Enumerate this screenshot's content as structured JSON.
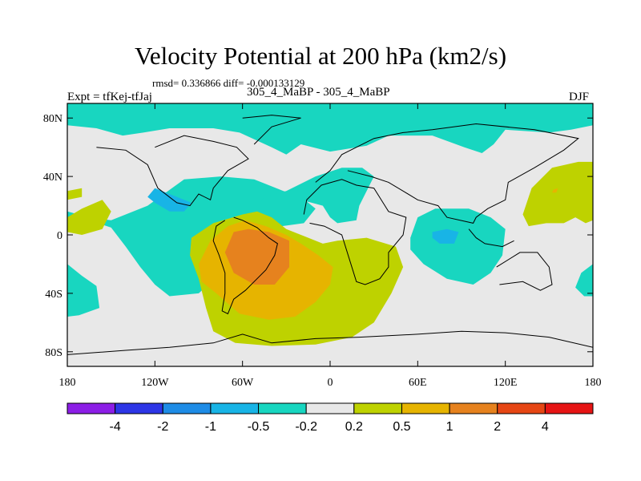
{
  "chart_data": {
    "type": "contour-map",
    "title": "Velocity Potential at 200 hPa (km2/s)",
    "stats": "rmsd= 0.336866 diff= -0.000133129",
    "left_string": "Expt = tfKej-tfJaj",
    "center_string": "305_4_MaBP - 305_4_MaBP",
    "right_string": "DJF",
    "xlim": [
      -180,
      180
    ],
    "ylim": [
      -90,
      90
    ],
    "x_ticks": [
      {
        "value": -180,
        "label": "180"
      },
      {
        "value": -120,
        "label": "120W"
      },
      {
        "value": -60,
        "label": "60W"
      },
      {
        "value": 0,
        "label": "0"
      },
      {
        "value": 60,
        "label": "60E"
      },
      {
        "value": 120,
        "label": "120E"
      },
      {
        "value": 180,
        "label": "180"
      }
    ],
    "y_ticks": [
      {
        "value": 80,
        "label": "80N"
      },
      {
        "value": 40,
        "label": "40N"
      },
      {
        "value": 0,
        "label": "0"
      },
      {
        "value": -40,
        "label": "40S"
      },
      {
        "value": -80,
        "label": "80S"
      }
    ],
    "colorbar": {
      "levels": [
        "-4",
        "-2",
        "-1",
        "-0.5",
        "-0.2",
        "0.2",
        "0.5",
        "1",
        "2",
        "4"
      ],
      "colors": [
        "#8c1ee6",
        "#2d36e6",
        "#1e8ce6",
        "#18b4e6",
        "#18d6c0",
        "#e8e8e8",
        "#bed200",
        "#e6b400",
        "#e6821e",
        "#e64614",
        "#e61414"
      ]
    },
    "regions": [
      {
        "level": 4,
        "points": [
          [
            -180,
            90
          ],
          [
            180,
            90
          ],
          [
            180,
            75
          ],
          [
            165,
            72
          ],
          [
            150,
            70
          ],
          [
            120,
            72
          ],
          [
            112,
            62
          ],
          [
            104,
            56
          ],
          [
            92,
            60
          ],
          [
            70,
            68
          ],
          [
            40,
            68
          ],
          [
            25,
            61
          ],
          [
            0,
            57
          ],
          [
            -20,
            62
          ],
          [
            -30,
            55
          ],
          [
            -40,
            60
          ],
          [
            -62,
            70
          ],
          [
            -80,
            73
          ],
          [
            -110,
            73
          ],
          [
            -128,
            70
          ],
          [
            -142,
            68
          ],
          [
            -160,
            73
          ],
          [
            -180,
            75
          ]
        ]
      },
      {
        "level": 4,
        "points": [
          [
            -180,
            10
          ],
          [
            -165,
            10
          ],
          [
            -150,
            5
          ],
          [
            -140,
            -8
          ],
          [
            -130,
            -22
          ],
          [
            -120,
            -34
          ],
          [
            -110,
            -42
          ],
          [
            -90,
            -40
          ],
          [
            -70,
            -22
          ],
          [
            -55,
            -4
          ],
          [
            -40,
            5
          ],
          [
            -18,
            8
          ],
          [
            -10,
            18
          ],
          [
            -20,
            26
          ],
          [
            -32,
            30
          ],
          [
            -42,
            34
          ],
          [
            -52,
            38
          ],
          [
            -75,
            40
          ],
          [
            -100,
            38
          ],
          [
            -125,
            20
          ],
          [
            -150,
            10
          ],
          [
            -165,
            12
          ],
          [
            -180,
            16
          ],
          [
            -180,
            -10
          ]
        ]
      },
      {
        "level": 4,
        "points": [
          [
            -180,
            -20
          ],
          [
            -170,
            -28
          ],
          [
            -160,
            -35
          ],
          [
            -158,
            -50
          ],
          [
            -172,
            -55
          ],
          [
            -180,
            -56
          ]
        ]
      },
      {
        "level": 4,
        "points": [
          [
            -48,
            22
          ],
          [
            -20,
            24
          ],
          [
            -5,
            20
          ],
          [
            0,
            12
          ],
          [
            5,
            8
          ],
          [
            18,
            10
          ],
          [
            20,
            20
          ],
          [
            25,
            30
          ],
          [
            30,
            40
          ],
          [
            22,
            46
          ],
          [
            8,
            46
          ],
          [
            -10,
            40
          ],
          [
            -30,
            30
          ],
          [
            -45,
            26
          ]
        ]
      },
      {
        "level": 4,
        "points": [
          [
            55,
            -2
          ],
          [
            60,
            12
          ],
          [
            72,
            18
          ],
          [
            95,
            18
          ],
          [
            110,
            12
          ],
          [
            120,
            4
          ],
          [
            118,
            -14
          ],
          [
            110,
            -26
          ],
          [
            98,
            -34
          ],
          [
            80,
            -30
          ],
          [
            64,
            -20
          ],
          [
            55,
            -10
          ]
        ]
      },
      {
        "level": 4,
        "points": [
          [
            180,
            -42
          ],
          [
            180,
            -20
          ],
          [
            172,
            -26
          ],
          [
            168,
            -36
          ],
          [
            174,
            -42
          ]
        ]
      },
      {
        "level": 3,
        "points": [
          [
            -120,
            32
          ],
          [
            -110,
            28
          ],
          [
            -95,
            22
          ],
          [
            -100,
            16
          ],
          [
            -110,
            16
          ],
          [
            -120,
            22
          ],
          [
            -125,
            26
          ]
        ]
      },
      {
        "level": 3,
        "points": [
          [
            70,
            2
          ],
          [
            80,
            4
          ],
          [
            88,
            2
          ],
          [
            85,
            -6
          ],
          [
            75,
            -6
          ],
          [
            70,
            -2
          ]
        ]
      },
      {
        "level": 6,
        "points": [
          [
            -180,
            30
          ],
          [
            -170,
            32
          ],
          [
            -170,
            26
          ],
          [
            -180,
            24
          ]
        ]
      },
      {
        "level": 6,
        "points": [
          [
            -180,
            12
          ],
          [
            -170,
            18
          ],
          [
            -156,
            24
          ],
          [
            -150,
            16
          ],
          [
            -156,
            4
          ],
          [
            -170,
            0
          ],
          [
            -180,
            2
          ]
        ]
      },
      {
        "level": 6,
        "points": [
          [
            -95,
            -2
          ],
          [
            -80,
            8
          ],
          [
            -60,
            14
          ],
          [
            -50,
            16
          ],
          [
            -40,
            12
          ],
          [
            -30,
            4
          ],
          [
            -20,
            0
          ],
          [
            -5,
            -6
          ],
          [
            5,
            -4
          ],
          [
            25,
            -2
          ],
          [
            45,
            -8
          ],
          [
            50,
            -22
          ],
          [
            42,
            -40
          ],
          [
            30,
            -60
          ],
          [
            15,
            -70
          ],
          [
            -10,
            -75
          ],
          [
            -40,
            -76
          ],
          [
            -65,
            -74
          ],
          [
            -80,
            -66
          ],
          [
            -85,
            -50
          ],
          [
            -90,
            -30
          ],
          [
            -96,
            -14
          ]
        ]
      },
      {
        "level": 6,
        "points": [
          [
            132,
            14
          ],
          [
            138,
            32
          ],
          [
            152,
            46
          ],
          [
            170,
            50
          ],
          [
            180,
            50
          ],
          [
            180,
            10
          ],
          [
            175,
            8
          ],
          [
            168,
            12
          ],
          [
            160,
            8
          ],
          [
            148,
            8
          ],
          [
            136,
            6
          ]
        ]
      },
      {
        "level": 7,
        "points": [
          [
            -90,
            -20
          ],
          [
            -82,
            -4
          ],
          [
            -70,
            6
          ],
          [
            -58,
            10
          ],
          [
            -44,
            6
          ],
          [
            -30,
            0
          ],
          [
            -20,
            -6
          ],
          [
            -8,
            -14
          ],
          [
            2,
            -22
          ],
          [
            0,
            -34
          ],
          [
            -10,
            -46
          ],
          [
            -24,
            -56
          ],
          [
            -42,
            -58
          ],
          [
            -62,
            -54
          ],
          [
            -78,
            -40
          ],
          [
            -88,
            -32
          ]
        ]
      },
      {
        "level": 8,
        "points": [
          [
            -72,
            -12
          ],
          [
            -66,
            2
          ],
          [
            -56,
            4
          ],
          [
            -42,
            2
          ],
          [
            -28,
            -4
          ],
          [
            -28,
            -22
          ],
          [
            -38,
            -34
          ],
          [
            -52,
            -34
          ],
          [
            -66,
            -26
          ]
        ]
      },
      {
        "level": 7,
        "points": [
          [
            153,
            31
          ],
          [
            156,
            32
          ],
          [
            155,
            29
          ],
          [
            152,
            29
          ]
        ]
      }
    ],
    "coastlines": [
      [
        [
          -180,
          -82
        ],
        [
          -140,
          -79
        ],
        [
          -110,
          -77
        ],
        [
          -80,
          -74
        ],
        [
          -60,
          -68
        ],
        [
          -40,
          -74
        ],
        [
          -10,
          -71
        ],
        [
          20,
          -70
        ],
        [
          60,
          -68
        ],
        [
          90,
          -66
        ],
        [
          120,
          -67
        ],
        [
          150,
          -70
        ],
        [
          180,
          -77
        ]
      ],
      [
        [
          -66,
          12
        ],
        [
          -60,
          10
        ],
        [
          -50,
          5
        ],
        [
          -42,
          -2
        ],
        [
          -36,
          -6
        ],
        [
          -38,
          -14
        ],
        [
          -44,
          -24
        ],
        [
          -52,
          -32
        ],
        [
          -58,
          -38
        ],
        [
          -66,
          -44
        ],
        [
          -70,
          -54
        ],
        [
          -74,
          -52
        ],
        [
          -72,
          -40
        ],
        [
          -72,
          -26
        ],
        [
          -76,
          -14
        ],
        [
          -80,
          -4
        ],
        [
          -78,
          6
        ],
        [
          -72,
          10
        ]
      ],
      [
        [
          -18,
          14
        ],
        [
          -16,
          24
        ],
        [
          -6,
          34
        ],
        [
          8,
          38
        ],
        [
          18,
          34
        ],
        [
          30,
          32
        ],
        [
          40,
          16
        ],
        [
          52,
          12
        ],
        [
          50,
          0
        ],
        [
          40,
          -12
        ],
        [
          40,
          -22
        ],
        [
          34,
          -30
        ],
        [
          24,
          -34
        ],
        [
          18,
          -32
        ],
        [
          13,
          -16
        ],
        [
          8,
          0
        ],
        [
          -4,
          6
        ],
        [
          -14,
          8
        ]
      ],
      [
        [
          -120,
          60
        ],
        [
          -100,
          68
        ],
        [
          -80,
          64
        ],
        [
          -64,
          60
        ],
        [
          -56,
          52
        ],
        [
          -70,
          44
        ],
        [
          -80,
          32
        ],
        [
          -82,
          24
        ],
        [
          -90,
          28
        ],
        [
          -96,
          20
        ],
        [
          -105,
          22
        ],
        [
          -118,
          32
        ],
        [
          -125,
          48
        ],
        [
          -140,
          58
        ],
        [
          -160,
          60
        ]
      ],
      [
        [
          -10,
          36
        ],
        [
          0,
          44
        ],
        [
          8,
          55
        ],
        [
          30,
          66
        ],
        [
          50,
          70
        ],
        [
          70,
          72
        ],
        [
          100,
          76
        ],
        [
          140,
          72
        ],
        [
          170,
          66
        ],
        [
          160,
          58
        ],
        [
          140,
          46
        ],
        [
          122,
          36
        ],
        [
          120,
          24
        ],
        [
          108,
          18
        ],
        [
          100,
          12
        ],
        [
          98,
          8
        ],
        [
          80,
          12
        ],
        [
          74,
          20
        ],
        [
          60,
          24
        ],
        [
          50,
          30
        ],
        [
          40,
          36
        ],
        [
          28,
          40
        ],
        [
          12,
          44
        ]
      ],
      [
        [
          114,
          -22
        ],
        [
          130,
          -12
        ],
        [
          142,
          -12
        ],
        [
          150,
          -22
        ],
        [
          152,
          -34
        ],
        [
          144,
          -38
        ],
        [
          132,
          -32
        ],
        [
          116,
          -34
        ]
      ],
      [
        [
          -52,
          62
        ],
        [
          -40,
          74
        ],
        [
          -20,
          80
        ],
        [
          -40,
          82
        ],
        [
          -60,
          80
        ]
      ],
      [
        [
          95,
          4
        ],
        [
          100,
          -2
        ],
        [
          106,
          -6
        ],
        [
          118,
          -8
        ],
        [
          126,
          -4
        ]
      ]
    ]
  }
}
